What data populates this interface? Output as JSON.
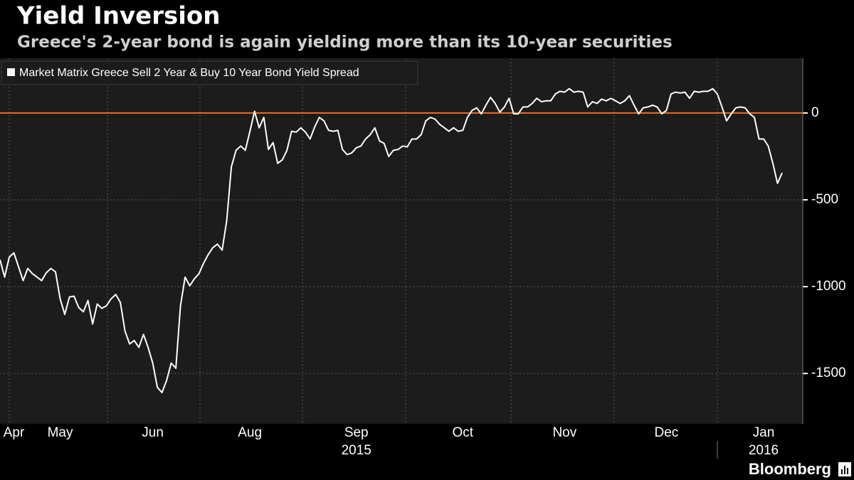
{
  "chart_data": {
    "type": "line",
    "title": "Yield Inversion",
    "subtitle": "Greece's 2-year bond is again yielding more than its 10-year securities",
    "source": "Bloomberg",
    "categories": [
      null,
      null,
      null,
      "Apr",
      null,
      null,
      null,
      null,
      null,
      null,
      null,
      null,
      null,
      "May",
      null,
      null,
      null,
      null,
      null,
      null,
      null,
      null,
      null,
      null,
      null,
      null,
      null,
      null,
      null,
      null,
      null,
      null,
      null,
      "Jun",
      null,
      null,
      null,
      null,
      null,
      null,
      null,
      null,
      null,
      null,
      null,
      null,
      null,
      null,
      null,
      null,
      null,
      null,
      null,
      null,
      "Aug",
      null,
      null,
      null,
      null,
      null,
      null,
      null,
      null,
      null,
      null,
      null,
      null,
      null,
      null,
      null,
      null,
      null,
      null,
      null,
      null,
      null,
      null,
      "Sep",
      null,
      null,
      null,
      null,
      null,
      null,
      null,
      null,
      null,
      null,
      null,
      null,
      null,
      null,
      null,
      null,
      null,
      null,
      null,
      null,
      null,
      null,
      "Oct",
      null,
      null,
      null,
      null,
      null,
      null,
      null,
      null,
      null,
      null,
      null,
      null,
      null,
      null,
      null,
      null,
      null,
      null,
      null,
      null,
      null,
      "Nov",
      null,
      null,
      null,
      null,
      null,
      null,
      null,
      null,
      null,
      null,
      null,
      null,
      null,
      null,
      null,
      null,
      null,
      null,
      null,
      null,
      null,
      "Dec",
      null,
      null,
      null,
      null,
      null,
      null,
      null,
      null,
      null,
      null,
      null,
      null,
      null,
      null,
      null,
      null,
      null,
      null,
      null,
      null,
      "Jan",
      null,
      null,
      null,
      null
    ],
    "category_years": [
      null,
      null,
      null,
      null,
      null,
      null,
      null,
      null,
      null,
      null,
      null,
      null,
      null,
      null,
      null,
      null,
      null,
      null,
      null,
      null,
      null,
      null,
      null,
      null,
      null,
      null,
      null,
      null,
      null,
      null,
      null,
      null,
      null,
      null,
      null,
      null,
      null,
      null,
      null,
      null,
      null,
      null,
      null,
      null,
      null,
      null,
      null,
      null,
      null,
      null,
      null,
      null,
      null,
      null,
      null,
      null,
      null,
      null,
      null,
      null,
      null,
      null,
      null,
      null,
      null,
      null,
      null,
      null,
      null,
      null,
      null,
      null,
      null,
      null,
      null,
      null,
      null,
      "2015",
      null,
      null,
      null,
      null,
      null,
      null,
      null,
      null,
      null,
      null,
      null,
      null,
      null,
      null,
      null,
      null,
      null,
      null,
      null,
      null,
      null,
      null,
      null,
      null,
      null,
      null,
      null,
      null,
      null,
      null,
      null,
      null,
      null,
      null,
      null,
      null,
      null,
      null,
      null,
      null,
      null,
      null,
      null,
      null,
      null,
      null,
      null,
      null,
      null,
      null,
      null,
      null,
      null,
      null,
      null,
      null,
      null,
      null,
      null,
      null,
      null,
      null,
      null,
      null,
      null,
      null,
      null,
      null,
      null,
      null,
      null,
      null,
      null,
      null,
      null,
      null,
      null,
      null,
      null,
      null,
      null,
      null,
      null,
      null,
      null,
      null,
      null,
      "2016",
      null,
      null,
      null,
      null
    ],
    "series": [
      {
        "name": "Market Matrix Greece Sell 2 Year & Buy 10 Year Bond Yield Spread",
        "color": "#ffffff",
        "values": [
          -845,
          -945,
          -830,
          -805,
          -885,
          -965,
          -895,
          -925,
          -945,
          -965,
          -920,
          -895,
          -915,
          -1070,
          -1160,
          -1060,
          -1055,
          -1120,
          -1145,
          -1080,
          -1215,
          -1100,
          -1125,
          -1110,
          -1070,
          -1045,
          -1090,
          -1255,
          -1330,
          -1310,
          -1350,
          -1275,
          -1350,
          -1440,
          -1580,
          -1610,
          -1540,
          -1440,
          -1470,
          -1110,
          -945,
          -995,
          -955,
          -925,
          -865,
          -815,
          -775,
          -755,
          -790,
          -620,
          -310,
          -215,
          -190,
          -215,
          -105,
          10,
          -85,
          -25,
          -210,
          -170,
          -290,
          -270,
          -215,
          -105,
          -110,
          -85,
          -110,
          -150,
          -80,
          -25,
          -45,
          -100,
          -105,
          -100,
          -210,
          -240,
          -230,
          -200,
          -190,
          -150,
          -125,
          -85,
          -160,
          -175,
          -250,
          -215,
          -210,
          -190,
          -195,
          -150,
          -150,
          -125,
          -45,
          -25,
          -35,
          -65,
          -85,
          -105,
          -85,
          -105,
          -100,
          -25,
          15,
          30,
          -5,
          45,
          90,
          55,
          5,
          35,
          85,
          -5,
          -5,
          35,
          35,
          55,
          85,
          65,
          70,
          70,
          110,
          125,
          120,
          140,
          120,
          125,
          120,
          35,
          65,
          55,
          80,
          70,
          85,
          70,
          55,
          70,
          100,
          45,
          -5,
          30,
          35,
          45,
          35,
          -5,
          15,
          110,
          120,
          115,
          120,
          85,
          125,
          120,
          125,
          125,
          140,
          110,
          35,
          -45,
          -5,
          30,
          35,
          30,
          -5,
          -25,
          -150,
          -150,
          -190,
          -290,
          -405,
          -345
        ]
      }
    ],
    "reference_line": {
      "value": 0,
      "color": "#f26b1d"
    },
    "ylim": [
      -1790,
      315
    ],
    "yticks": [
      0,
      -500,
      -1000,
      -1500
    ],
    "grid": true
  }
}
